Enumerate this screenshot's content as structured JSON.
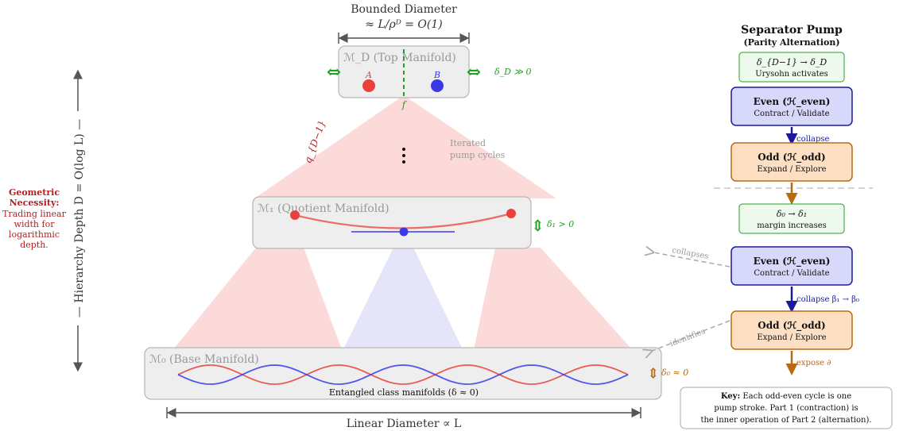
{
  "top": {
    "diameter_title": "Bounded Diameter",
    "diameter_formula": "≈ L/ρᴰ = O(1)",
    "manifold_label": "ℳ_D (Top Manifold)",
    "point_a": "A",
    "point_b": "B",
    "separator": "f",
    "delta": "δ_D ≫ 0"
  },
  "middle": {
    "map_label": "q_{D−1}",
    "dots": "⋮",
    "iterated_line1": "Iterated",
    "iterated_line2": "pump cycles",
    "manifold_label": "ℳ₁ (Quotient Manifold)",
    "delta": "δ₁ > 0"
  },
  "base": {
    "manifold_label": "ℳ₀ (Base Manifold)",
    "caption": "Entangled class manifolds (δ ≈ 0)",
    "delta": "δ₀ ≈ 0",
    "linear_diameter": "Linear Diameter ∝ L"
  },
  "left": {
    "depth_label": "— Hierarchy Depth D = O(log L) —",
    "necessity_title1": "Geometric",
    "necessity_title2": "Necessity:",
    "necessity_body": [
      "Trading linear",
      "width for",
      "logarithmic",
      "depth."
    ]
  },
  "pump": {
    "title": "Separator Pump",
    "subtitle": "(Parity Alternation)",
    "top_transition": {
      "line1": "δ_{D−1} → δ_D",
      "line2": "Urysohn activates"
    },
    "even1": {
      "title": "Even (ℋ_even)",
      "sub": "Contract / Validate"
    },
    "arrow_collapse": "collapse",
    "odd1": {
      "title": "Odd (ℋ_odd)",
      "sub": "Expand / Explore"
    },
    "mid_transition": {
      "line1": "δ₀ → δ₁",
      "line2": "margin increases"
    },
    "even2": {
      "title": "Even (ℋ_even)",
      "sub": "Contract / Validate"
    },
    "arrow_collapse_beta": "collapse β₁ → β₀",
    "odd2": {
      "title": "Odd (ℋ_odd)",
      "sub": "Expand / Explore"
    },
    "arrow_expose": "expose ∂",
    "collapses_label": "collapses",
    "identifies_label": "identifies"
  },
  "key": {
    "bold": "Key:",
    "line1": "Each odd-even cycle is one",
    "line2": "pump stroke. Part 1 (contraction) is",
    "line3": "the inner operation of Part 2 (alternation)."
  },
  "colors": {
    "red": "#e8413c",
    "blue": "#3a3ae6",
    "green": "#22a022",
    "navy": "#1a1a9e",
    "orange": "#b86a10",
    "dark_red": "#b22222",
    "gray_text": "#888888",
    "manifold_fill": "#eeeeee",
    "manifold_stroke": "#aaaaaa",
    "even_fill": "#d8d8fa",
    "odd_fill": "#fde0c4",
    "green_fill": "#eefaee"
  }
}
